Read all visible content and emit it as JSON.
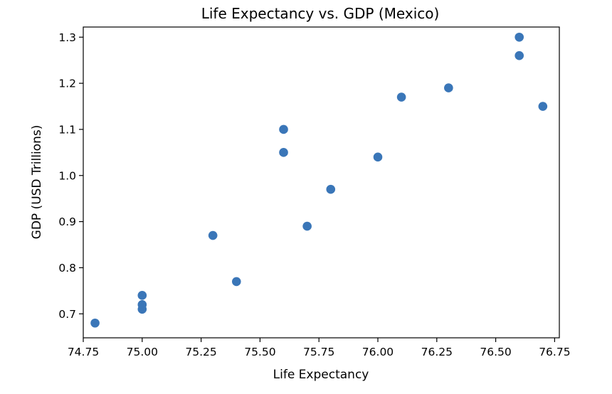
{
  "chart_data": {
    "type": "scatter",
    "title": "Life Expectancy vs. GDP (Mexico)",
    "xlabel": "Life Expectancy",
    "ylabel": "GDP (USD Trillions)",
    "xlim": [
      74.75,
      76.77
    ],
    "ylim": [
      0.648,
      1.322
    ],
    "xticks": [
      "74.75",
      "75.00",
      "75.25",
      "75.50",
      "75.75",
      "76.00",
      "76.25",
      "76.50",
      "76.75"
    ],
    "yticks": [
      "0.7",
      "0.8",
      "0.9",
      "1.0",
      "1.1",
      "1.2",
      "1.3"
    ],
    "grid": false,
    "marker_color": "#3a76b8",
    "points": [
      {
        "x": 74.8,
        "y": 0.68
      },
      {
        "x": 75.0,
        "y": 0.71
      },
      {
        "x": 75.0,
        "y": 0.72
      },
      {
        "x": 75.0,
        "y": 0.74
      },
      {
        "x": 75.3,
        "y": 0.87
      },
      {
        "x": 75.4,
        "y": 0.77
      },
      {
        "x": 75.6,
        "y": 1.05
      },
      {
        "x": 75.6,
        "y": 1.1
      },
      {
        "x": 75.7,
        "y": 0.89
      },
      {
        "x": 75.8,
        "y": 0.97
      },
      {
        "x": 76.0,
        "y": 1.04
      },
      {
        "x": 76.1,
        "y": 1.17
      },
      {
        "x": 76.3,
        "y": 1.19
      },
      {
        "x": 76.6,
        "y": 1.26
      },
      {
        "x": 76.6,
        "y": 1.3
      },
      {
        "x": 76.7,
        "y": 1.15
      }
    ]
  }
}
